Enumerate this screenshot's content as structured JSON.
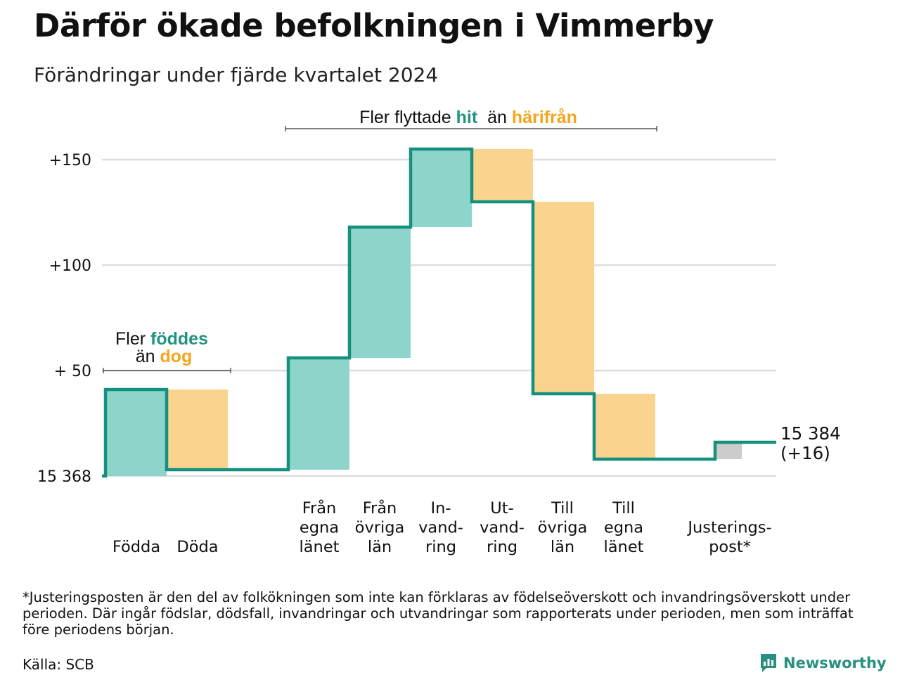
{
  "header": {
    "title": "Därför ökade befolkningen i Vimmerby",
    "subtitle": "Förändringar under fjärde kvartalet 2024"
  },
  "chart_data": {
    "type": "waterfall",
    "base_value": 15368,
    "base_label": "15 368",
    "y_ticks": [
      {
        "value": 0,
        "label": "15 368"
      },
      {
        "value": 50,
        "label": "+ 50"
      },
      {
        "value": 100,
        "label": "+100"
      },
      {
        "value": 150,
        "label": "+150"
      }
    ],
    "ylim": [
      0,
      160
    ],
    "grid": true,
    "steps": [
      {
        "name": "Födda",
        "label_lines": [
          "Födda"
        ],
        "value": 41,
        "kind": "in"
      },
      {
        "name": "Döda",
        "label_lines": [
          "Döda"
        ],
        "value": -38,
        "kind": "out"
      },
      {
        "name": "Från egna länet",
        "label_lines": [
          "Från",
          "egna",
          "länet"
        ],
        "value": 53,
        "kind": "in"
      },
      {
        "name": "Från övriga län",
        "label_lines": [
          "Från",
          "övriga",
          "län"
        ],
        "value": 62,
        "kind": "in"
      },
      {
        "name": "Invandring",
        "label_lines": [
          "In-",
          "vand-",
          "ring"
        ],
        "value": 37,
        "kind": "in"
      },
      {
        "name": "Utvandring",
        "label_lines": [
          "Ut-",
          "vand-",
          "ring"
        ],
        "value": -25,
        "kind": "out"
      },
      {
        "name": "Till övriga län",
        "label_lines": [
          "Till",
          "övriga",
          "län"
        ],
        "value": -91,
        "kind": "out"
      },
      {
        "name": "Till egna länet",
        "label_lines": [
          "Till",
          "egna",
          "länet"
        ],
        "value": -31,
        "kind": "out"
      },
      {
        "name": "Justeringspost*",
        "label_lines": [
          "Justerings-",
          "post*"
        ],
        "value": 8,
        "kind": "adjust"
      }
    ],
    "end_value_label": "15 384",
    "end_change_label": "(+16)",
    "annotations": {
      "births": {
        "line1": "Fler",
        "hl1": "föddes",
        "line2": "än",
        "hl2": "dog"
      },
      "migration": {
        "pre": "Fler flyttade",
        "hl1": "hit",
        "mid": "än",
        "hl2": "härifrån"
      }
    },
    "colors": {
      "in": "#8dd5cb",
      "out": "#fad48f",
      "adjust": "#cccccc",
      "line": "#15907f",
      "teal_text": "#21937f",
      "orange_text": "#f4a51c",
      "grid": "#dddddd"
    }
  },
  "footnote": "*Justeringsposten är den del av folkökningen som inte kan förklaras av födelseöverskott och invandringsöverskott under perioden. Där ingår födslar, dödsfall, invandringar och utvandringar som rapporterats under perioden, men som inträffat före periodens början.",
  "source": "Källa: SCB",
  "logo_text": "Newsworthy"
}
